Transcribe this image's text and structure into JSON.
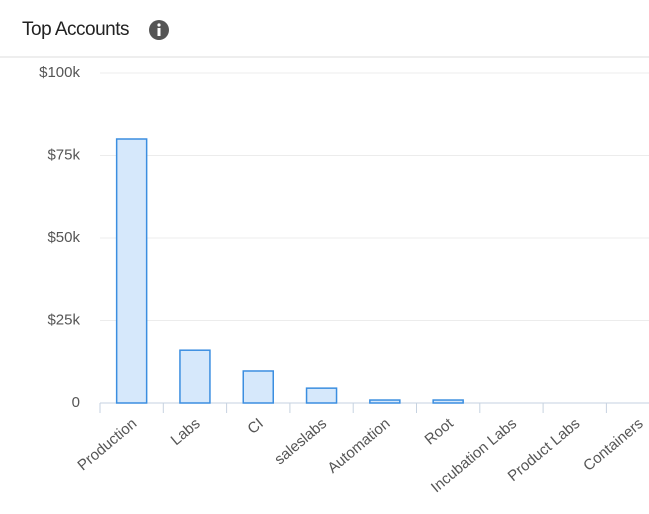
{
  "chart_data": {
    "type": "bar",
    "title": "Top Accounts",
    "categories": [
      "Production",
      "Labs",
      "CI",
      "saleslabs",
      "Automation",
      "Root",
      "Incubation Labs",
      "Product Labs",
      "Containers"
    ],
    "values": [
      80000,
      16000,
      9700,
      4500,
      900,
      900,
      0,
      0,
      0
    ],
    "color": "#d6e8fb",
    "stroke": "#3b8ee0",
    "ylim": [
      0,
      100000
    ],
    "yticks": [
      {
        "value": 0,
        "label": "0"
      },
      {
        "value": 25000,
        "label": "$25k"
      },
      {
        "value": 50000,
        "label": "$50k"
      },
      {
        "value": 75000,
        "label": "$75k"
      },
      {
        "value": 100000,
        "label": "$100k"
      }
    ],
    "grid": true
  }
}
